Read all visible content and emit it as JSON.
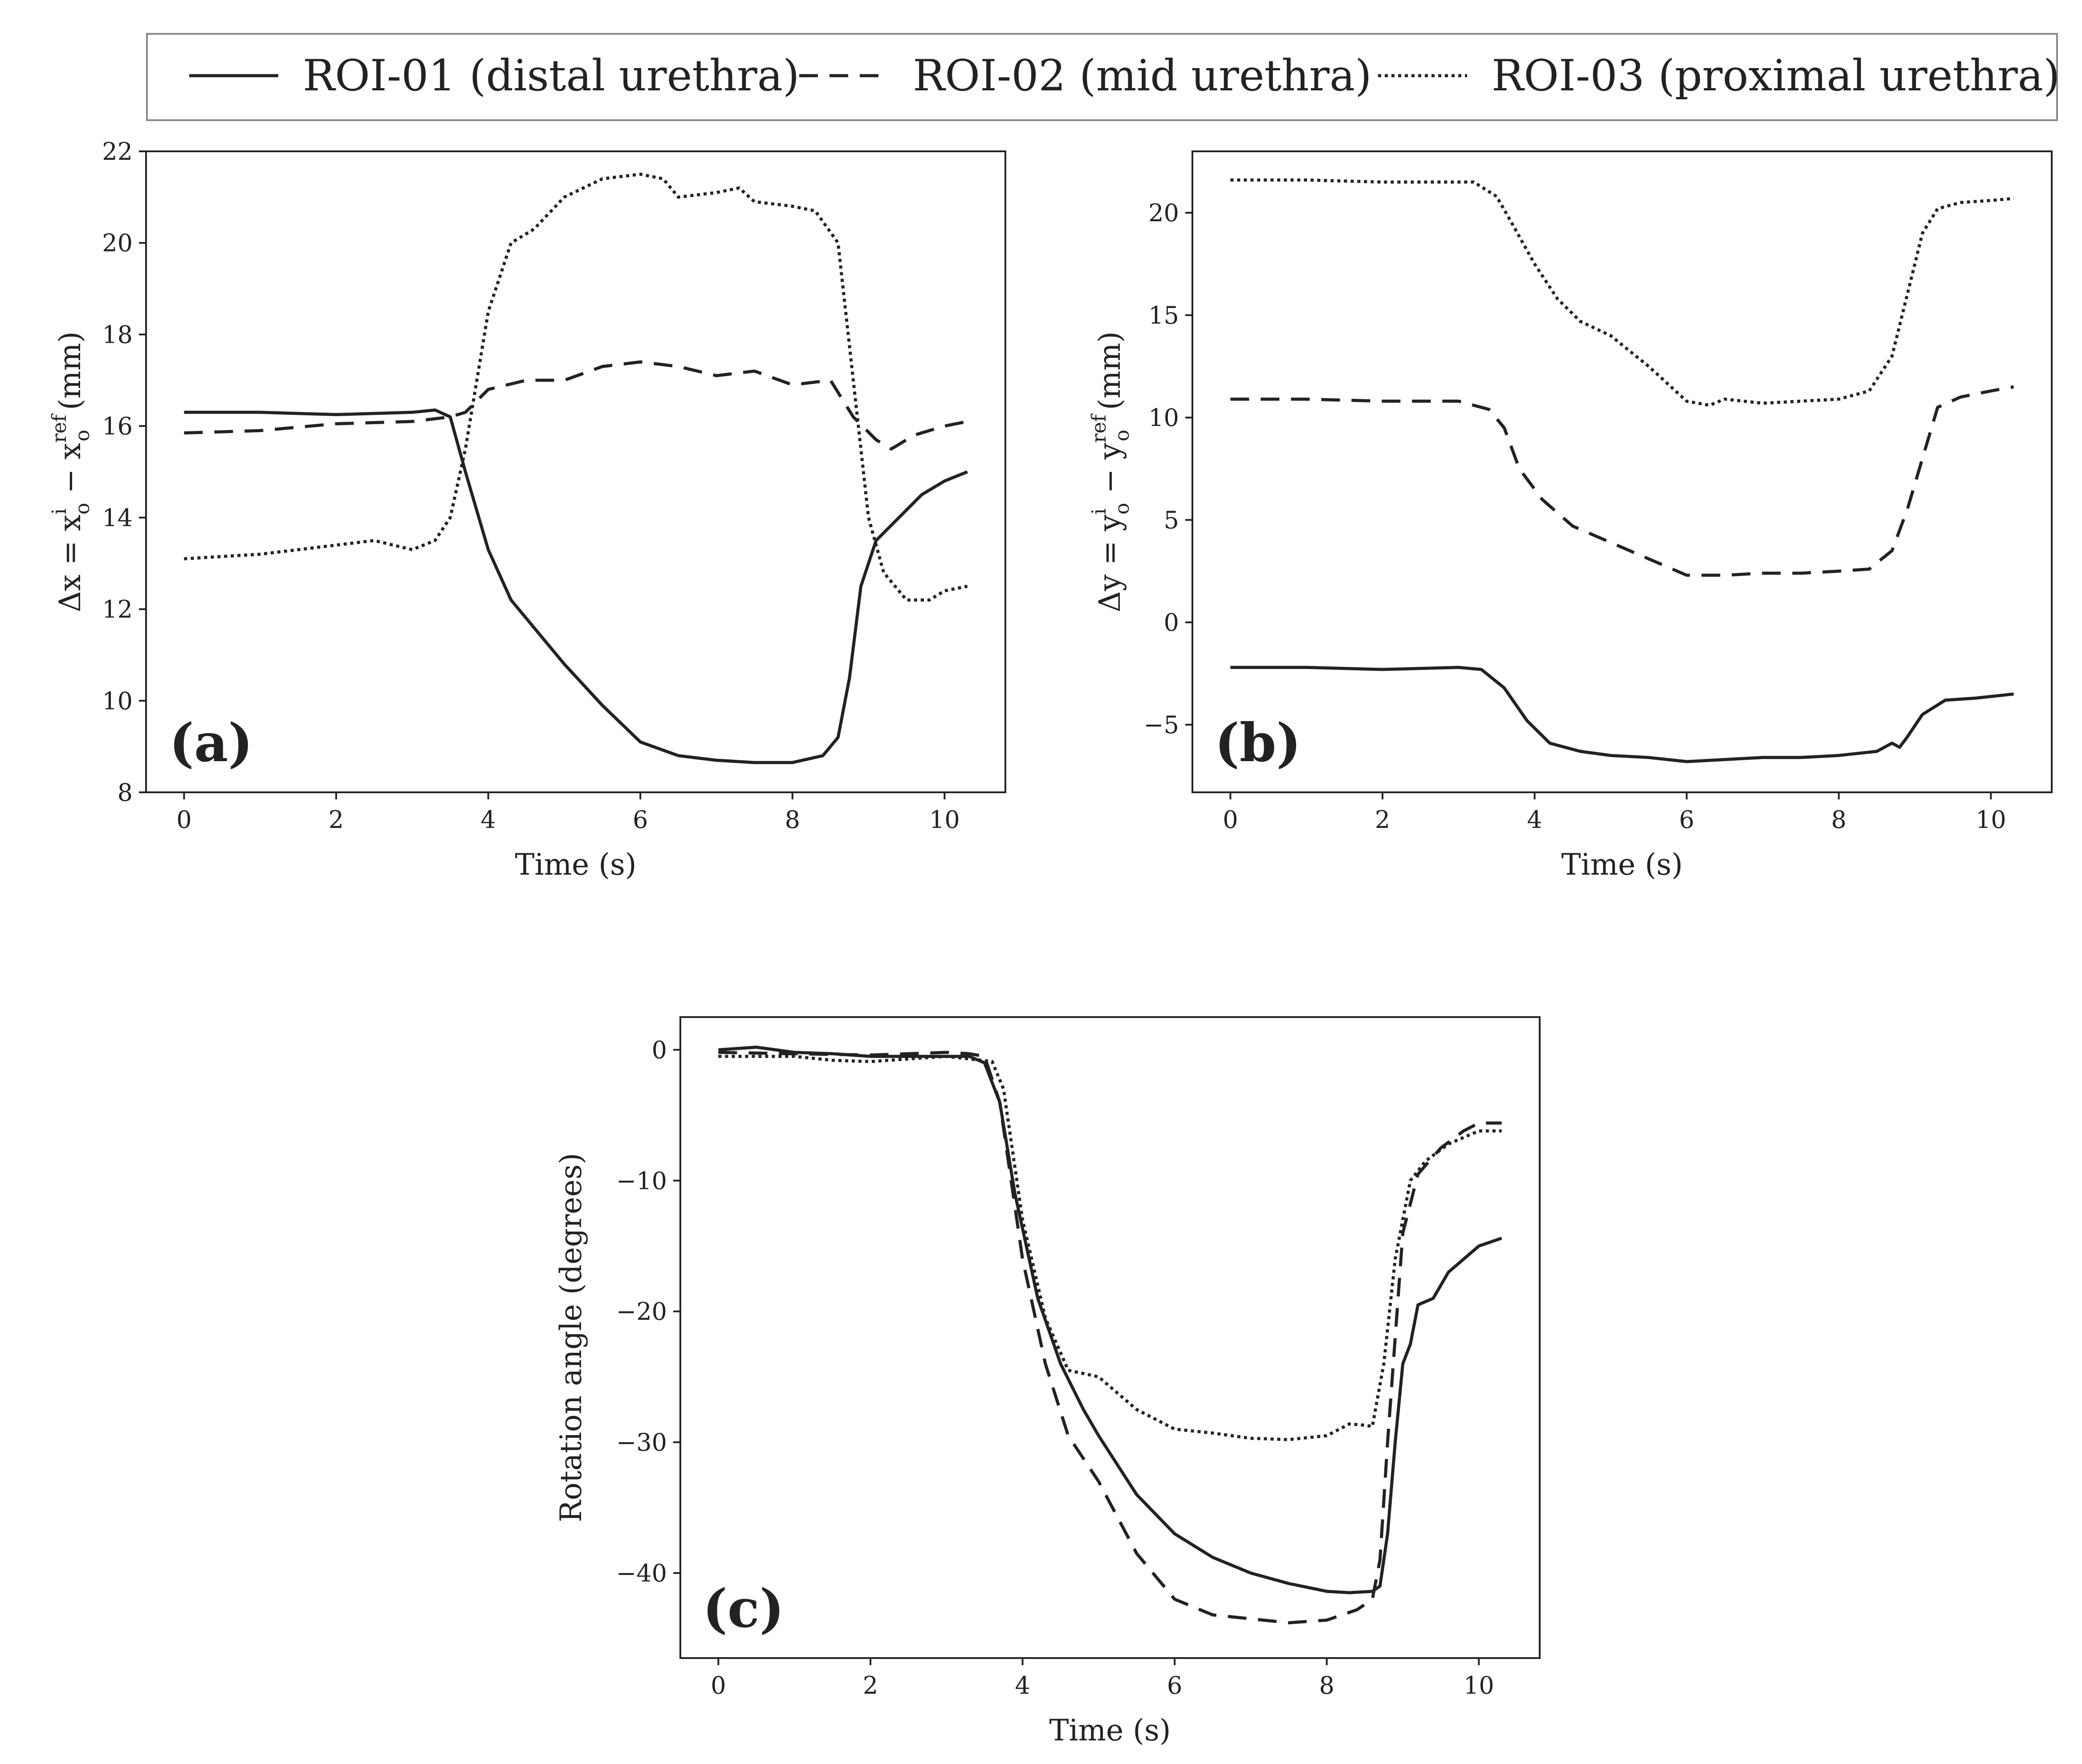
{
  "legend": {
    "placement": "top",
    "entries": [
      {
        "label": "ROI-01 (distal urethra)",
        "style": "solid"
      },
      {
        "label": "ROI-02 (mid urethra)",
        "style": "dashed"
      },
      {
        "label": "ROI-03 (proximal urethra)",
        "style": "dotted"
      }
    ]
  },
  "colors": {
    "line": "#222222",
    "frame": "#222222",
    "legend_border": "#888888",
    "background": "#ffffff"
  },
  "chart_data": [
    {
      "id": "a",
      "type": "line",
      "panel_label": "(a)",
      "xlabel": "Time (s)",
      "ylabel_parts": {
        "pre": "Δx = x",
        "sub1": "o",
        "sup1": "i",
        "mid": " − x",
        "sub2": "o",
        "sup2": "ref",
        "post": "(mm)"
      },
      "xlim": [
        -0.5,
        10.8
      ],
      "ylim": [
        8,
        22
      ],
      "xticks": [
        0,
        2,
        4,
        6,
        8,
        10
      ],
      "yticks": [
        8,
        10,
        12,
        14,
        16,
        18,
        20,
        22
      ],
      "grid": false,
      "series": [
        {
          "style": "solid",
          "points": [
            [
              0,
              16.3
            ],
            [
              1,
              16.3
            ],
            [
              2,
              16.25
            ],
            [
              3,
              16.3
            ],
            [
              3.3,
              16.35
            ],
            [
              3.5,
              16.2
            ],
            [
              3.7,
              15.0
            ],
            [
              4.0,
              13.3
            ],
            [
              4.3,
              12.2
            ],
            [
              4.6,
              11.6
            ],
            [
              5.0,
              10.8
            ],
            [
              5.5,
              9.9
            ],
            [
              6.0,
              9.1
            ],
            [
              6.5,
              8.8
            ],
            [
              7.0,
              8.7
            ],
            [
              7.5,
              8.65
            ],
            [
              8.0,
              8.65
            ],
            [
              8.4,
              8.8
            ],
            [
              8.6,
              9.2
            ],
            [
              8.75,
              10.5
            ],
            [
              8.9,
              12.5
            ],
            [
              9.1,
              13.5
            ],
            [
              9.4,
              14.0
            ],
            [
              9.7,
              14.5
            ],
            [
              10.0,
              14.8
            ],
            [
              10.3,
              15.0
            ]
          ]
        },
        {
          "style": "dashed",
          "points": [
            [
              0,
              15.85
            ],
            [
              1,
              15.9
            ],
            [
              2,
              16.05
            ],
            [
              3,
              16.1
            ],
            [
              3.5,
              16.2
            ],
            [
              3.7,
              16.3
            ],
            [
              4.0,
              16.8
            ],
            [
              4.5,
              17.0
            ],
            [
              5.0,
              17.0
            ],
            [
              5.5,
              17.3
            ],
            [
              6.0,
              17.4
            ],
            [
              6.5,
              17.3
            ],
            [
              7.0,
              17.1
            ],
            [
              7.5,
              17.2
            ],
            [
              8.0,
              16.9
            ],
            [
              8.5,
              17.0
            ],
            [
              8.8,
              16.2
            ],
            [
              9.1,
              15.7
            ],
            [
              9.3,
              15.5
            ],
            [
              9.6,
              15.8
            ],
            [
              10.0,
              16.0
            ],
            [
              10.3,
              16.1
            ]
          ]
        },
        {
          "style": "dotted",
          "points": [
            [
              0,
              13.1
            ],
            [
              1,
              13.2
            ],
            [
              1.5,
              13.3
            ],
            [
              2,
              13.4
            ],
            [
              2.5,
              13.5
            ],
            [
              3,
              13.3
            ],
            [
              3.3,
              13.5
            ],
            [
              3.5,
              14.0
            ],
            [
              3.7,
              15.5
            ],
            [
              4.0,
              18.5
            ],
            [
              4.3,
              20.0
            ],
            [
              4.6,
              20.3
            ],
            [
              5.0,
              21.0
            ],
            [
              5.5,
              21.4
            ],
            [
              6.0,
              21.5
            ],
            [
              6.3,
              21.4
            ],
            [
              6.5,
              21.0
            ],
            [
              7.0,
              21.1
            ],
            [
              7.3,
              21.2
            ],
            [
              7.5,
              20.9
            ],
            [
              8.0,
              20.8
            ],
            [
              8.3,
              20.7
            ],
            [
              8.6,
              20.0
            ],
            [
              8.8,
              17.0
            ],
            [
              9.0,
              14.0
            ],
            [
              9.2,
              12.8
            ],
            [
              9.5,
              12.2
            ],
            [
              9.8,
              12.2
            ],
            [
              10.0,
              12.4
            ],
            [
              10.3,
              12.5
            ]
          ]
        }
      ]
    },
    {
      "id": "b",
      "type": "line",
      "panel_label": "(b)",
      "xlabel": "Time (s)",
      "ylabel_parts": {
        "pre": "Δy = y",
        "sub1": "o",
        "sup1": "i",
        "mid": " − y",
        "sub2": "o",
        "sup2": "ref",
        "post": "(mm)"
      },
      "xlim": [
        -0.5,
        10.8
      ],
      "ylim": [
        -8.3,
        23
      ],
      "xticks": [
        0,
        2,
        4,
        6,
        8,
        10
      ],
      "yticks": [
        -5,
        0,
        5,
        10,
        15,
        20
      ],
      "grid": false,
      "series": [
        {
          "style": "solid",
          "points": [
            [
              0,
              -2.2
            ],
            [
              1,
              -2.2
            ],
            [
              2,
              -2.3
            ],
            [
              3,
              -2.2
            ],
            [
              3.3,
              -2.3
            ],
            [
              3.6,
              -3.2
            ],
            [
              3.9,
              -4.8
            ],
            [
              4.2,
              -5.9
            ],
            [
              4.6,
              -6.3
            ],
            [
              5.0,
              -6.5
            ],
            [
              5.5,
              -6.6
            ],
            [
              6.0,
              -6.8
            ],
            [
              6.5,
              -6.7
            ],
            [
              7.0,
              -6.6
            ],
            [
              7.5,
              -6.6
            ],
            [
              8.0,
              -6.5
            ],
            [
              8.5,
              -6.3
            ],
            [
              8.7,
              -5.9
            ],
            [
              8.8,
              -6.1
            ],
            [
              8.9,
              -5.6
            ],
            [
              9.1,
              -4.5
            ],
            [
              9.4,
              -3.8
            ],
            [
              9.8,
              -3.7
            ],
            [
              10.3,
              -3.5
            ]
          ]
        },
        {
          "style": "dashed",
          "points": [
            [
              0,
              10.9
            ],
            [
              1,
              10.9
            ],
            [
              2,
              10.8
            ],
            [
              3,
              10.8
            ],
            [
              3.4,
              10.4
            ],
            [
              3.6,
              9.5
            ],
            [
              3.8,
              7.5
            ],
            [
              4.1,
              6.0
            ],
            [
              4.5,
              4.7
            ],
            [
              5.0,
              3.9
            ],
            [
              5.5,
              3.1
            ],
            [
              6.0,
              2.3
            ],
            [
              6.5,
              2.3
            ],
            [
              7.0,
              2.4
            ],
            [
              7.5,
              2.4
            ],
            [
              8.0,
              2.5
            ],
            [
              8.4,
              2.6
            ],
            [
              8.7,
              3.5
            ],
            [
              8.9,
              5.5
            ],
            [
              9.1,
              8.0
            ],
            [
              9.3,
              10.5
            ],
            [
              9.6,
              11.0
            ],
            [
              10.0,
              11.3
            ],
            [
              10.3,
              11.5
            ]
          ]
        },
        {
          "style": "dotted",
          "points": [
            [
              0,
              21.6
            ],
            [
              1,
              21.6
            ],
            [
              2,
              21.5
            ],
            [
              3,
              21.5
            ],
            [
              3.2,
              21.5
            ],
            [
              3.5,
              20.8
            ],
            [
              3.7,
              19.5
            ],
            [
              4.0,
              17.5
            ],
            [
              4.3,
              15.8
            ],
            [
              4.6,
              14.7
            ],
            [
              5.0,
              14.0
            ],
            [
              5.5,
              12.5
            ],
            [
              6.0,
              10.8
            ],
            [
              6.3,
              10.6
            ],
            [
              6.5,
              10.9
            ],
            [
              7.0,
              10.7
            ],
            [
              7.5,
              10.8
            ],
            [
              8.0,
              10.9
            ],
            [
              8.4,
              11.3
            ],
            [
              8.7,
              13.0
            ],
            [
              8.9,
              16.0
            ],
            [
              9.1,
              19.0
            ],
            [
              9.3,
              20.2
            ],
            [
              9.6,
              20.5
            ],
            [
              10.0,
              20.6
            ],
            [
              10.3,
              20.7
            ]
          ]
        }
      ]
    },
    {
      "id": "c",
      "type": "line",
      "panel_label": "(c)",
      "xlabel": "Time (s)",
      "ylabel": "Rotation angle (degrees)",
      "xlim": [
        -0.5,
        10.8
      ],
      "ylim": [
        -46.5,
        2.5
      ],
      "xticks": [
        0,
        2,
        4,
        6,
        8,
        10
      ],
      "yticks": [
        -40,
        -30,
        -20,
        -10,
        0
      ],
      "grid": false,
      "series": [
        {
          "style": "solid",
          "points": [
            [
              0,
              0
            ],
            [
              0.5,
              0.2
            ],
            [
              1,
              -0.2
            ],
            [
              1.5,
              -0.3
            ],
            [
              2,
              -0.5
            ],
            [
              2.5,
              -0.5
            ],
            [
              3,
              -0.5
            ],
            [
              3.3,
              -0.5
            ],
            [
              3.5,
              -1.0
            ],
            [
              3.7,
              -4.0
            ],
            [
              3.9,
              -11.0
            ],
            [
              4.2,
              -19.0
            ],
            [
              4.5,
              -24.0
            ],
            [
              4.8,
              -27.5
            ],
            [
              5.0,
              -29.5
            ],
            [
              5.5,
              -34.0
            ],
            [
              6.0,
              -37.0
            ],
            [
              6.5,
              -38.8
            ],
            [
              7.0,
              -40.0
            ],
            [
              7.5,
              -40.8
            ],
            [
              8.0,
              -41.4
            ],
            [
              8.3,
              -41.5
            ],
            [
              8.6,
              -41.4
            ],
            [
              8.7,
              -41.0
            ],
            [
              8.8,
              -37.0
            ],
            [
              8.9,
              -30.0
            ],
            [
              9.0,
              -24.0
            ],
            [
              9.1,
              -22.5
            ],
            [
              9.2,
              -19.5
            ],
            [
              9.4,
              -19.0
            ],
            [
              9.6,
              -17.0
            ],
            [
              10.0,
              -15.0
            ],
            [
              10.3,
              -14.4
            ]
          ]
        },
        {
          "style": "dashed",
          "points": [
            [
              0,
              -0.2
            ],
            [
              1,
              -0.3
            ],
            [
              2,
              -0.4
            ],
            [
              2.5,
              -0.3
            ],
            [
              3,
              -0.2
            ],
            [
              3.3,
              -0.3
            ],
            [
              3.5,
              -0.5
            ],
            [
              3.7,
              -4.0
            ],
            [
              4.0,
              -16.0
            ],
            [
              4.3,
              -24.0
            ],
            [
              4.6,
              -29.5
            ],
            [
              5.0,
              -33.0
            ],
            [
              5.5,
              -38.5
            ],
            [
              6.0,
              -42.0
            ],
            [
              6.5,
              -43.2
            ],
            [
              7.0,
              -43.5
            ],
            [
              7.5,
              -43.8
            ],
            [
              8.0,
              -43.6
            ],
            [
              8.4,
              -42.8
            ],
            [
              8.6,
              -42.0
            ],
            [
              8.7,
              -39.0
            ],
            [
              8.8,
              -30.0
            ],
            [
              8.9,
              -22.0
            ],
            [
              9.0,
              -14.0
            ],
            [
              9.2,
              -9.5
            ],
            [
              9.5,
              -7.5
            ],
            [
              9.8,
              -6.2
            ],
            [
              10.0,
              -5.6
            ],
            [
              10.3,
              -5.6
            ]
          ]
        },
        {
          "style": "dotted",
          "points": [
            [
              0,
              -0.5
            ],
            [
              1,
              -0.5
            ],
            [
              1.5,
              -0.8
            ],
            [
              2,
              -0.9
            ],
            [
              2.5,
              -0.7
            ],
            [
              3,
              -0.5
            ],
            [
              3.3,
              -0.7
            ],
            [
              3.6,
              -0.9
            ],
            [
              3.75,
              -3.0
            ],
            [
              4.0,
              -13.0
            ],
            [
              4.3,
              -20.5
            ],
            [
              4.6,
              -24.5
            ],
            [
              5.0,
              -25.0
            ],
            [
              5.5,
              -27.5
            ],
            [
              6.0,
              -29.0
            ],
            [
              6.5,
              -29.3
            ],
            [
              7.0,
              -29.7
            ],
            [
              7.5,
              -29.8
            ],
            [
              8.0,
              -29.5
            ],
            [
              8.3,
              -28.6
            ],
            [
              8.5,
              -28.7
            ],
            [
              8.6,
              -28.8
            ],
            [
              8.75,
              -24.0
            ],
            [
              8.9,
              -16.0
            ],
            [
              9.1,
              -10.0
            ],
            [
              9.3,
              -8.5
            ],
            [
              9.6,
              -7.2
            ],
            [
              10.0,
              -6.2
            ],
            [
              10.3,
              -6.2
            ]
          ]
        }
      ]
    }
  ]
}
